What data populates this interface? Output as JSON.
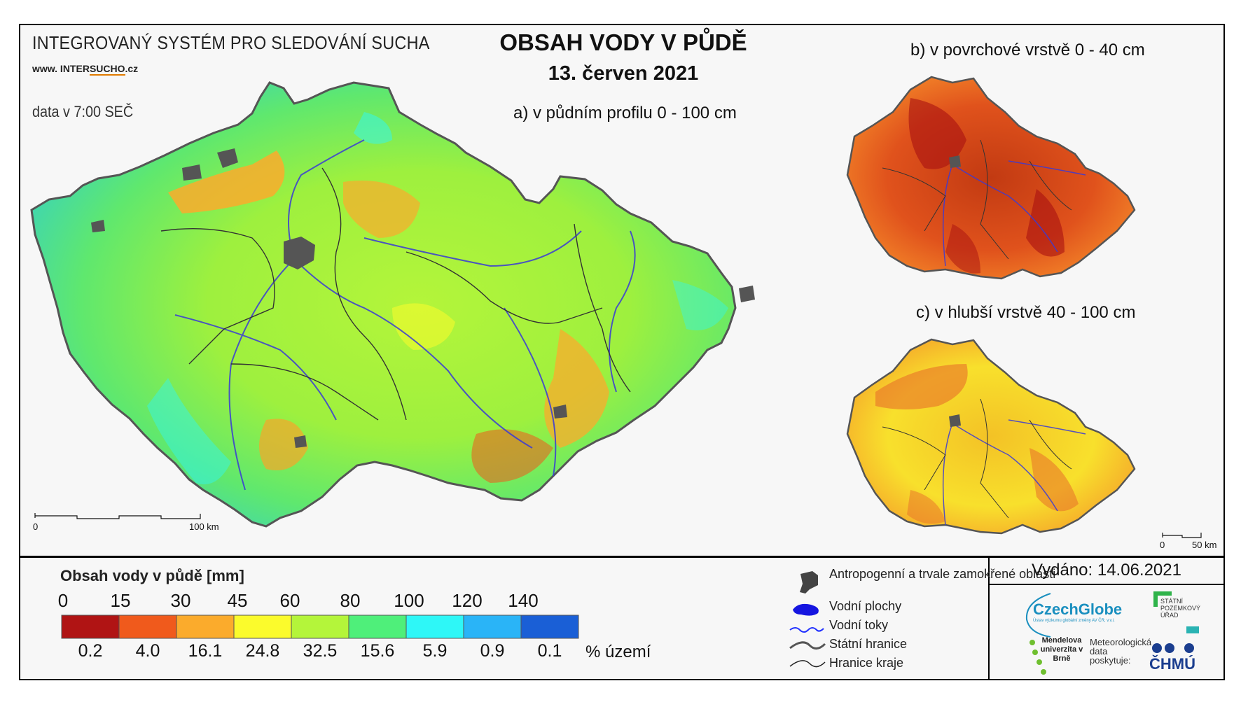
{
  "header": {
    "system_title": "INTEGROVANÝ SYSTÉM PRO SLEDOVÁNÍ SUCHA",
    "website_prefix": "www. INTER",
    "website_brand": "SUCHO",
    "website_suffix": ".cz",
    "data_time": "data v 7:00 SEČ"
  },
  "title": {
    "main": "OBSAH VODY V PŮDĚ",
    "date": "13. červen 2021"
  },
  "maps": {
    "a_label": "a) v půdním profilu 0 - 100 cm",
    "b_label": "b) v povrchové vrstvě 0 - 40 cm",
    "c_label": "c) v hlubší vrstvě 40 - 100 cm",
    "scale_main": {
      "start": "0",
      "end": "100 km"
    },
    "scale_small": {
      "start": "0",
      "end": "50 km"
    }
  },
  "legend": {
    "title": "Obsah vody v půdě  [mm]",
    "ticks": [
      "0",
      "15",
      "30",
      "45",
      "60",
      "80",
      "100",
      "120",
      "140"
    ],
    "classes": [
      {
        "color": "#b01414",
        "percent": "0.2"
      },
      {
        "color": "#f05a1c",
        "percent": "4.0"
      },
      {
        "color": "#fbab2c",
        "percent": "16.1"
      },
      {
        "color": "#fbfb2c",
        "percent": "24.8"
      },
      {
        "color": "#b4f53a",
        "percent": "32.5"
      },
      {
        "color": "#4fef7a",
        "percent": "15.6"
      },
      {
        "color": "#2ef7f7",
        "percent": "5.9"
      },
      {
        "color": "#2ab4f7",
        "percent": "0.9"
      },
      {
        "color": "#1a5fd6",
        "percent": "0.1"
      }
    ],
    "percent_unit": "% území"
  },
  "map_legend": {
    "items": [
      {
        "icon": "urban-area-icon",
        "label": "Antropogenní a trvale zamokřené oblasti"
      },
      {
        "icon": "water-body-icon",
        "label": "Vodní plochy"
      },
      {
        "icon": "river-icon",
        "label": "Vodní toky"
      },
      {
        "icon": "state-border-icon",
        "label": "Státní hranice"
      },
      {
        "icon": "region-border-icon",
        "label": "Hranice kraje"
      }
    ]
  },
  "issued": "Vydáno: 14.06.2021",
  "logos": {
    "czechglobe": "CzechGlobe",
    "czechglobe_sub": "Ústav výzkumu globální změny AV ČR, v.v.i.",
    "spu": "STÁTNÍ POZEMKOVÝ ÚŘAD",
    "mendel": "Mendelova univerzita v Brně",
    "meteo": "Meteorologická data poskytuje:",
    "chmu": "ČHMÚ"
  }
}
